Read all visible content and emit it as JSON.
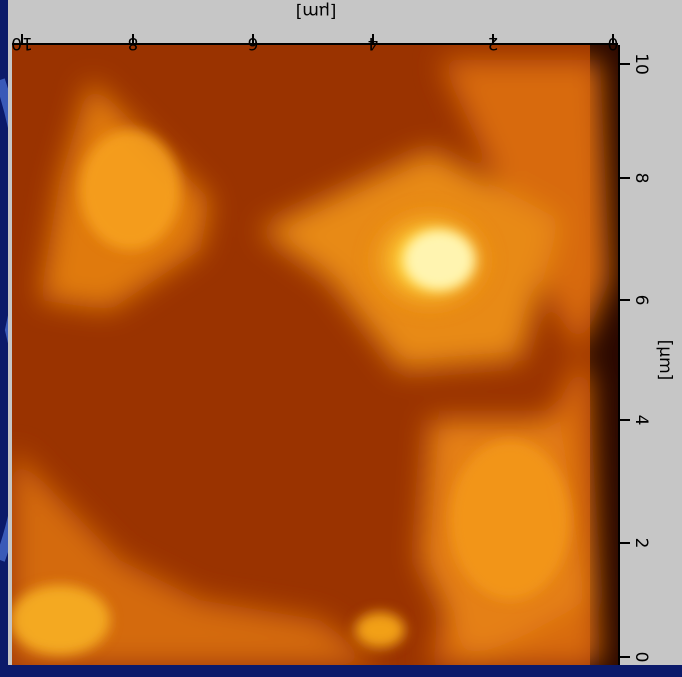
{
  "top_axis": {
    "unit": "[μm]",
    "ticks": [
      "10",
      "8",
      "6",
      "4",
      "2",
      "0"
    ]
  },
  "right_axis": {
    "unit": "[μm]",
    "ticks": [
      "10",
      "8",
      "6",
      "4",
      "2",
      "0"
    ]
  }
}
